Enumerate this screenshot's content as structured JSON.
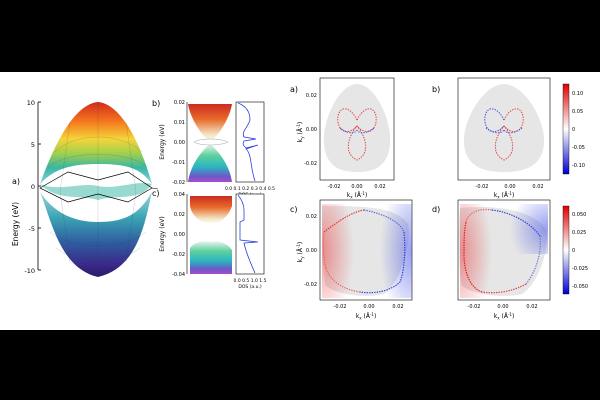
{
  "panels_left": {
    "a": {
      "label": "a)",
      "ylabel": "Energy (eV)",
      "yticks": [
        "10",
        "5",
        "0",
        "-5",
        "-10"
      ]
    },
    "b": {
      "label": "b)",
      "ylabel": "Energy (eV)",
      "yticks": [
        "0.02",
        "0.01",
        "0.00",
        "-0.01",
        "-0.02"
      ],
      "dos_xticks": "0.0 0.1 0.2 0.3 0.4 0.5",
      "dos_xlabel": "DOS (a.u.)"
    },
    "c": {
      "label": "c)",
      "ylabel": "Energy (eV)",
      "yticks": [
        "0.04",
        "0.02",
        "0.00",
        "-0.02",
        "-0.04"
      ],
      "dos_xticks": "0.0 0.5 1.0 1.5",
      "dos_xlabel": "DOS (a.u.)"
    }
  },
  "panels_right": {
    "axis": {
      "ylabel": "k",
      "ysub": "y",
      "yunit": " (Å",
      "yexp": "-1",
      "yclose": ")",
      "xlabel": "k",
      "xsub": "x",
      "xunit": " (Å",
      "xexp": "-1",
      "xclose": ")",
      "ticks": [
        "-0.02",
        "0.00",
        "0.02"
      ],
      "yticks": [
        "0.02",
        "0.00",
        "-0.02"
      ]
    },
    "a": {
      "label": "a)"
    },
    "b": {
      "label": "b)"
    },
    "c": {
      "label": "c)"
    },
    "d": {
      "label": "d)"
    },
    "colorbar_top": {
      "ticks": [
        "0.10",
        "0.05",
        "0",
        "-0.05",
        "-0.10"
      ],
      "max_color": "#e00000",
      "min_color": "#0000d0"
    },
    "colorbar_bottom": {
      "ticks": [
        "0.050",
        "0.025",
        "0",
        "-0.025",
        "-0.050"
      ],
      "max_color": "#e00000",
      "min_color": "#0000d0"
    }
  }
}
